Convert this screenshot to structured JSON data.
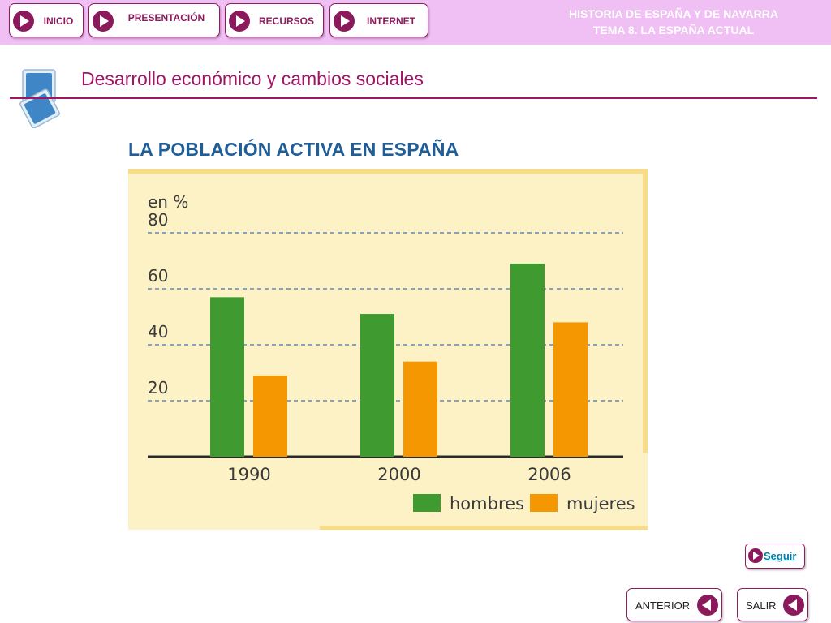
{
  "nav": {
    "inicio": "INICIO",
    "presentacion": "PRESENTACIÓN",
    "recursos": "RECURSOS",
    "internet": "INTERNET"
  },
  "course": {
    "line1": "HISTORIA DE ESPAÑA Y DE NAVARRA",
    "line2": "TEMA 8. LA ESPAÑA ACTUAL"
  },
  "section": {
    "title": "Desarrollo económico y cambios sociales",
    "icon": "stacked-squares-icon"
  },
  "chart_data": {
    "type": "bar",
    "title": "LA POBLACIÓN ACTIVA EN ESPAÑA",
    "ylabel": "en %",
    "categories": [
      "1990",
      "2000",
      "2006"
    ],
    "series": [
      {
        "name": "hombres",
        "color": "#3f9a2f",
        "values": [
          57,
          51,
          69
        ]
      },
      {
        "name": "mujeres",
        "color": "#f59700",
        "values": [
          29,
          34,
          48
        ]
      }
    ],
    "yticks": [
      "20",
      "40",
      "60",
      "80"
    ],
    "ylim": [
      0,
      80
    ],
    "grid": true,
    "legend": "bottom-right",
    "panel_color": "#fdf2c6"
  },
  "footer": {
    "seguir": "Seguir",
    "anterior": "ANTERIOR",
    "salir": "SALIR"
  }
}
